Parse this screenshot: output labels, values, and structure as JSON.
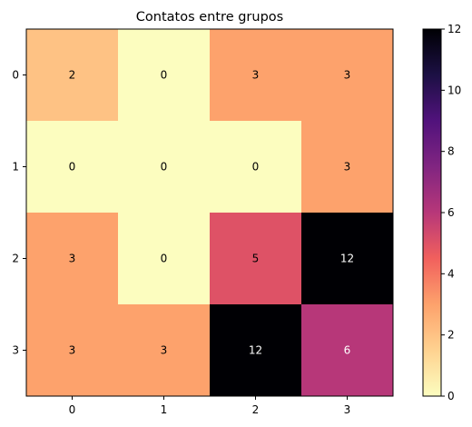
{
  "chart_data": {
    "type": "heatmap",
    "title": "Contatos entre grupos",
    "xlabel": "",
    "ylabel": "",
    "x_categories": [
      "0",
      "1",
      "2",
      "3"
    ],
    "y_categories": [
      "0",
      "1",
      "2",
      "3"
    ],
    "values": [
      [
        2,
        0,
        3,
        3
      ],
      [
        0,
        0,
        0,
        3
      ],
      [
        3,
        0,
        5,
        12
      ],
      [
        3,
        3,
        12,
        6
      ]
    ],
    "colormap": "magma_r",
    "colorbar": {
      "range": [
        0,
        12
      ],
      "ticks": [
        "0",
        "2",
        "4",
        "6",
        "8",
        "10",
        "12"
      ]
    },
    "grid": false
  }
}
